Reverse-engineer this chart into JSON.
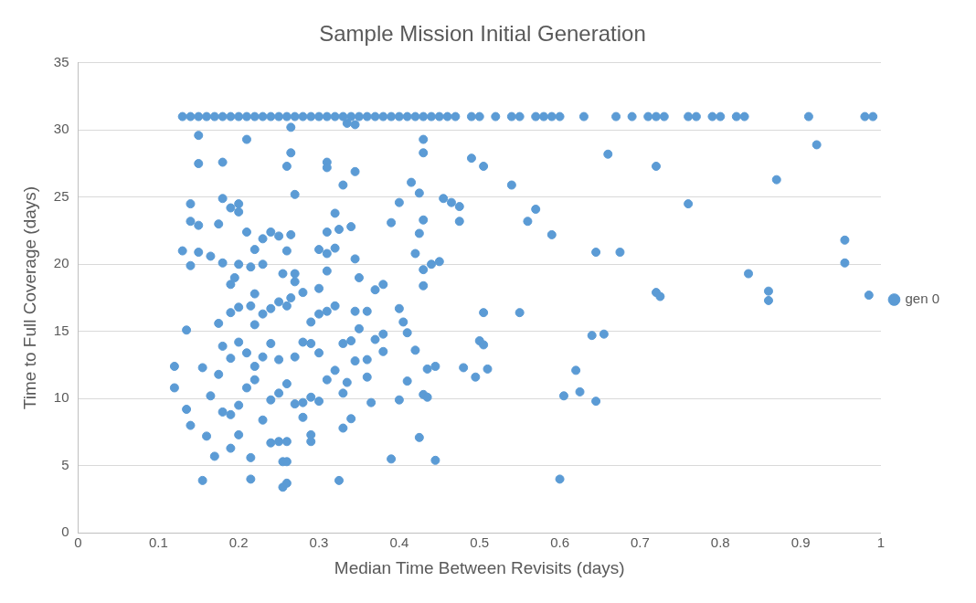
{
  "chart_data": {
    "type": "scatter",
    "title": "Sample Mission Initial Generation",
    "xlabel": "Median Time Between Revisits (days)",
    "ylabel": "Time to Full Coverage (days)",
    "xlim": [
      0,
      1
    ],
    "xticks": [
      0,
      0.1,
      0.2,
      0.3,
      0.4,
      0.5,
      0.6,
      0.7,
      0.8,
      0.9,
      1
    ],
    "ylim": [
      0,
      35
    ],
    "yticks": [
      0,
      5,
      10,
      15,
      20,
      25,
      30,
      35
    ],
    "grid": "y",
    "legend": "right",
    "marker": "circle",
    "series": [
      {
        "name": "gen 0",
        "color": "#5b9bd5",
        "x": [
          0.13,
          0.14,
          0.15,
          0.16,
          0.17,
          0.18,
          0.19,
          0.2,
          0.21,
          0.22,
          0.23,
          0.24,
          0.25,
          0.26,
          0.27,
          0.28,
          0.29,
          0.3,
          0.31,
          0.32,
          0.33,
          0.34,
          0.35,
          0.36,
          0.37,
          0.38,
          0.39,
          0.4,
          0.41,
          0.42,
          0.43,
          0.44,
          0.45,
          0.46,
          0.47,
          0.49,
          0.5,
          0.52,
          0.54,
          0.55,
          0.57,
          0.58,
          0.59,
          0.6,
          0.63,
          0.67,
          0.69,
          0.71,
          0.72,
          0.73,
          0.76,
          0.77,
          0.79,
          0.8,
          0.82,
          0.83,
          0.91,
          0.98,
          0.99,
          0.15,
          0.21,
          0.265,
          0.335,
          0.345,
          0.43,
          0.43,
          0.265,
          0.26,
          0.15,
          0.18,
          0.31,
          0.31,
          0.345,
          0.33,
          0.27,
          0.14,
          0.18,
          0.2,
          0.19,
          0.15,
          0.14,
          0.175,
          0.2,
          0.21,
          0.23,
          0.24,
          0.25,
          0.265,
          0.26,
          0.31,
          0.32,
          0.325,
          0.34,
          0.13,
          0.15,
          0.165,
          0.14,
          0.18,
          0.2,
          0.215,
          0.22,
          0.23,
          0.255,
          0.27,
          0.3,
          0.31,
          0.32,
          0.345,
          0.39,
          0.4,
          0.415,
          0.42,
          0.425,
          0.43,
          0.425,
          0.455,
          0.465,
          0.475,
          0.475,
          0.44,
          0.45,
          0.43,
          0.43,
          0.49,
          0.505,
          0.54,
          0.56,
          0.57,
          0.59,
          0.66,
          0.72,
          0.76,
          0.87,
          0.92,
          0.955,
          0.955,
          0.985,
          0.835,
          0.86,
          0.86,
          0.72,
          0.725,
          0.645,
          0.675,
          0.64,
          0.655,
          0.605,
          0.625,
          0.645,
          0.62,
          0.6,
          0.55,
          0.505,
          0.5,
          0.505,
          0.51,
          0.495,
          0.48,
          0.445,
          0.435,
          0.43,
          0.435,
          0.425,
          0.445,
          0.39,
          0.4,
          0.41,
          0.42,
          0.41,
          0.405,
          0.4,
          0.38,
          0.37,
          0.36,
          0.345,
          0.35,
          0.37,
          0.38,
          0.38,
          0.36,
          0.345,
          0.36,
          0.365,
          0.34,
          0.33,
          0.325,
          0.29,
          0.29,
          0.255,
          0.26,
          0.255,
          0.26,
          0.215,
          0.155,
          0.16,
          0.17,
          0.19,
          0.2,
          0.215,
          0.24,
          0.25,
          0.26,
          0.28,
          0.135,
          0.12,
          0.12,
          0.14,
          0.155,
          0.135,
          0.165,
          0.175,
          0.18,
          0.19,
          0.2,
          0.21,
          0.22,
          0.23,
          0.24,
          0.25,
          0.26,
          0.27,
          0.28,
          0.29,
          0.3,
          0.31,
          0.32,
          0.33,
          0.335,
          0.3,
          0.29,
          0.28,
          0.27,
          0.25,
          0.24,
          0.23,
          0.22,
          0.21,
          0.2,
          0.19,
          0.18,
          0.175,
          0.19,
          0.2,
          0.215,
          0.22,
          0.23,
          0.24,
          0.26,
          0.265,
          0.28,
          0.29,
          0.3,
          0.31,
          0.32,
          0.33,
          0.34,
          0.35,
          0.19,
          0.195,
          0.22,
          0.25,
          0.27,
          0.3,
          0.31
        ],
        "values": [
          31,
          31,
          31,
          31,
          31,
          31,
          31,
          31,
          31,
          31,
          31,
          31,
          31,
          31,
          31,
          31,
          31,
          31,
          31,
          31,
          31,
          31,
          31,
          31,
          31,
          31,
          31,
          31,
          31,
          31,
          31,
          31,
          31,
          31,
          31,
          31,
          31,
          31,
          31,
          31,
          31,
          31,
          31,
          31,
          31,
          31,
          31,
          31,
          31,
          31,
          31,
          31,
          31,
          31,
          31,
          31,
          31,
          31,
          31,
          29.6,
          29.3,
          30.2,
          30.5,
          30.4,
          29.3,
          28.3,
          28.3,
          27.3,
          27.5,
          27.6,
          27.6,
          27.2,
          26.9,
          25.9,
          25.2,
          24.5,
          24.9,
          24.5,
          24.2,
          22.9,
          23.2,
          23,
          23.9,
          22.4,
          21.9,
          22.4,
          22.1,
          22.2,
          21,
          22.4,
          23.8,
          22.6,
          22.8,
          21,
          20.9,
          20.6,
          19.9,
          20.1,
          20,
          19.8,
          21.1,
          20,
          19.3,
          19.3,
          21.1,
          20.8,
          21.2,
          20.4,
          23.1,
          24.6,
          26.1,
          20.8,
          22.3,
          23.3,
          25.3,
          24.9,
          24.6,
          24.3,
          23.2,
          20,
          20.2,
          19.6,
          18.4,
          27.9,
          27.3,
          25.9,
          23.2,
          24.1,
          22.2,
          28.2,
          27.3,
          24.5,
          26.3,
          28.9,
          21.8,
          20.1,
          17.7,
          19.3,
          18,
          17.3,
          17.9,
          17.6,
          20.9,
          20.9,
          14.7,
          14.8,
          10.2,
          10.5,
          9.8,
          12.1,
          4,
          16.4,
          16.4,
          14.3,
          14,
          12.2,
          11.6,
          12.3,
          12.4,
          12.2,
          10.3,
          10.1,
          7.1,
          5.4,
          5.5,
          9.9,
          11.3,
          13.6,
          14.9,
          15.7,
          16.7,
          18.5,
          18.1,
          16.5,
          16.5,
          19,
          14.4,
          14.8,
          13.5,
          12.9,
          12.8,
          11.6,
          9.7,
          8.5,
          7.8,
          3.9,
          6.8,
          7.3,
          5.3,
          5.3,
          3.4,
          3.7,
          4,
          3.9,
          7.2,
          5.7,
          6.3,
          7.3,
          5.6,
          6.7,
          6.8,
          6.8,
          8.6,
          9.2,
          10.8,
          12.4,
          8,
          12.3,
          15.1,
          10.2,
          11.8,
          9,
          8.8,
          9.5,
          10.8,
          11.4,
          8.4,
          9.9,
          10.4,
          11.1,
          9.6,
          9.7,
          10.1,
          9.8,
          11.4,
          12.1,
          10.4,
          11.2,
          13.4,
          14.1,
          14.2,
          13.1,
          12.9,
          14.1,
          13.1,
          12.4,
          13.4,
          14.2,
          13,
          13.9,
          15.6,
          16.4,
          16.8,
          16.9,
          15.5,
          16.3,
          16.7,
          16.9,
          17.5,
          17.9,
          15.7,
          16.3,
          16.5,
          16.9,
          14.1,
          14.3,
          15.2,
          18.5,
          19,
          17.8,
          17.2,
          18.7,
          18.2,
          19.5
        ]
      }
    ]
  }
}
